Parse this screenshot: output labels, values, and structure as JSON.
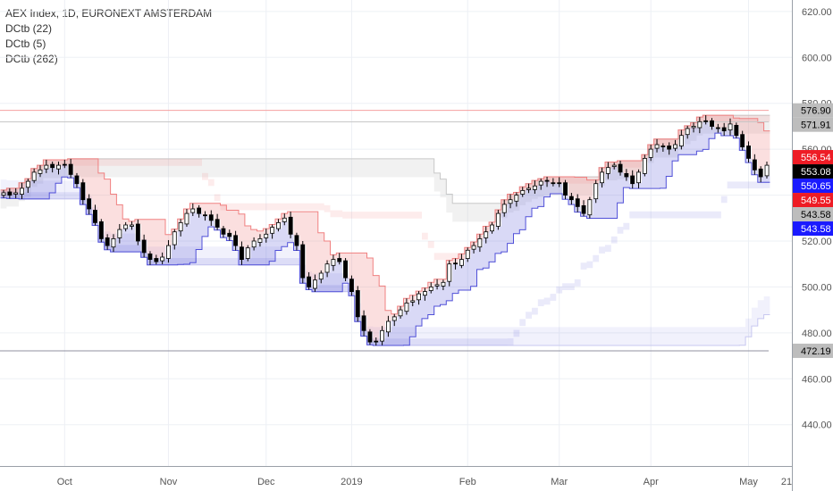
{
  "legend": {
    "title": "AEX Index, 1D, EURONEXT AMSTERDAM",
    "ind1": "DCtb (22)",
    "ind2": "DCtb (5)",
    "ind3": "DCtb (262)"
  },
  "colors": {
    "grid": "#edf0f5",
    "up": "#ffffff",
    "down": "#000000",
    "upper_band": "#f08080",
    "lower_band": "#5050d8",
    "long_band": "#c8c8f0"
  },
  "chart_data": {
    "type": "candlestick",
    "title": "AEX Index, 1D, EURONEXT AMSTERDAM",
    "ylim": [
      422,
      625
    ],
    "y_ticks": [
      "620.00",
      "600.00",
      "580.00",
      "560.00",
      "540.00",
      "520.00",
      "500.00",
      "480.00",
      "460.00",
      "440.00"
    ],
    "x_ticks": [
      "Oct",
      "Nov",
      "Dec",
      "2019",
      "Feb",
      "Mar",
      "Apr",
      "May",
      "21"
    ],
    "price_tags": [
      {
        "label": "576.90",
        "value": 576.9,
        "bg": "#bdbdbd",
        "fg": "#000000"
      },
      {
        "label": "571.91",
        "value": 571.91,
        "bg": "#bdbdbd",
        "fg": "#000000"
      },
      {
        "label": "556.54",
        "value": 556.54,
        "bg": "#ee1c25",
        "fg": "#ffffff"
      },
      {
        "label": "553.08",
        "value": 553.08,
        "bg": "#000000",
        "fg": "#ffffff"
      },
      {
        "label": "550.65",
        "value": 550.65,
        "bg": "#1a1aff",
        "fg": "#ffffff"
      },
      {
        "label": "549.55",
        "value": 549.55,
        "bg": "#ee1c25",
        "fg": "#ffffff"
      },
      {
        "label": "543.58",
        "value": 543.58,
        "bg": "#bdbdbd",
        "fg": "#000000"
      },
      {
        "label": "543.58",
        "value": 543.58,
        "bg": "#1a1aff",
        "fg": "#ffffff"
      },
      {
        "label": "472.19",
        "value": 472.19,
        "bg": "#bdbdbd",
        "fg": "#000000"
      }
    ],
    "series": [
      {
        "name": "close",
        "values": [
          541,
          540,
          541,
          543,
          546,
          550,
          551,
          553,
          552,
          553,
          553,
          549,
          545,
          538,
          534,
          528,
          521,
          518,
          521,
          525,
          527,
          527,
          520,
          515,
          512,
          511,
          513,
          518,
          524,
          528,
          532,
          534,
          532,
          531,
          529,
          526,
          523,
          522,
          518,
          512,
          517,
          520,
          521,
          523,
          526,
          528,
          530,
          523,
          518,
          504,
          500,
          503,
          506,
          510,
          512,
          511,
          504,
          498,
          487,
          481,
          476,
          476,
          481,
          485,
          487,
          490,
          493,
          494,
          497,
          498,
          500,
          501,
          502,
          510,
          510,
          512,
          516,
          518,
          521,
          524,
          527,
          532,
          536,
          538,
          540,
          542,
          543,
          544,
          546,
          546,
          545,
          545,
          540,
          538,
          535,
          532,
          538,
          545,
          550,
          552,
          553,
          550,
          548,
          545,
          550,
          556,
          560,
          562,
          561,
          560,
          562,
          566,
          569,
          570,
          572,
          572,
          570,
          569,
          568,
          571,
          566,
          561,
          556,
          551,
          548,
          553
        ]
      }
    ]
  }
}
